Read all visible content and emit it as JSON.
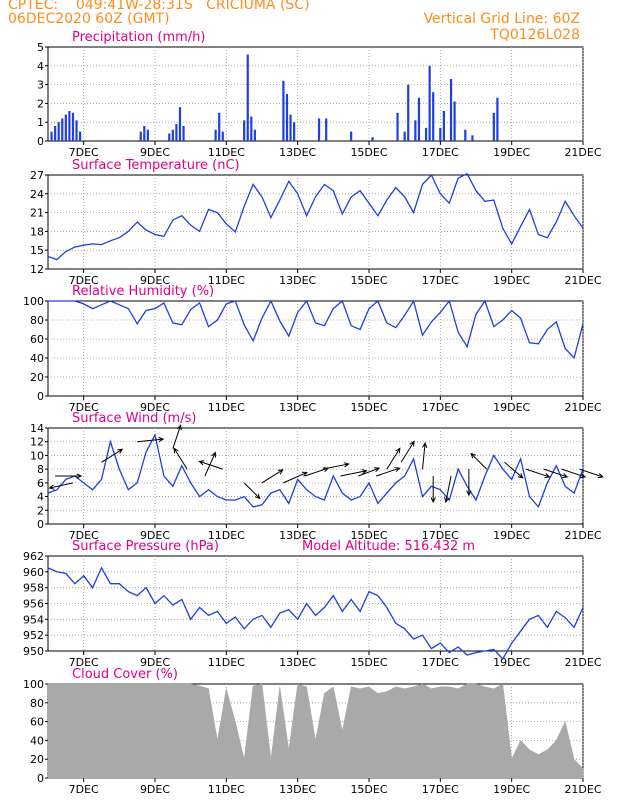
{
  "header": {
    "left_line1": "CPTEC:    049:41W-28:31S   CRICIUMA (SC)",
    "left_line2": "06DEC2020 60Z (GMT)",
    "right_line1": "Vertical Grid Line: 60Z",
    "right_line2": "TQ0126L028"
  },
  "colors": {
    "header": "#ff8c1a",
    "panel_title": "#e0008a",
    "line": "#1f3fe0",
    "precip_bar": "#1f3fe0",
    "cloud_fill": "#a9a9a9",
    "grid": "#9a9a9a"
  },
  "chart_data": [
    {
      "id": "precip",
      "type": "bar",
      "title": "Precipitation (mm/h)",
      "ylim": [
        0,
        5
      ],
      "yticks": [
        0,
        1,
        2,
        3,
        4,
        5
      ],
      "xticks": [
        "7DEC",
        "9DEC",
        "11DEC",
        "13DEC",
        "15DEC",
        "17DEC",
        "19DEC",
        "21DEC"
      ],
      "xlim": [
        6,
        21
      ],
      "grid": true,
      "x": [
        6.1,
        6.2,
        6.3,
        6.4,
        6.5,
        6.6,
        6.7,
        6.8,
        6.9,
        8.6,
        8.7,
        8.8,
        9.4,
        9.5,
        9.6,
        9.7,
        9.8,
        10.7,
        10.8,
        10.9,
        11.5,
        11.6,
        11.7,
        11.8,
        12.6,
        12.7,
        12.8,
        12.9,
        13.6,
        13.8,
        14.5,
        15.1,
        15.8,
        16.0,
        16.1,
        16.3,
        16.4,
        16.6,
        16.7,
        16.8,
        17.0,
        17.1,
        17.3,
        17.4,
        17.7,
        17.9,
        18.5,
        18.6
      ],
      "values": [
        0.5,
        0.8,
        1.0,
        1.2,
        1.4,
        1.6,
        1.5,
        1.1,
        0.5,
        0.5,
        0.8,
        0.6,
        0.4,
        0.6,
        0.9,
        1.8,
        0.8,
        0.6,
        1.5,
        0.5,
        1.1,
        4.6,
        1.3,
        0.6,
        3.2,
        2.5,
        1.4,
        1.0,
        1.2,
        1.2,
        0.5,
        0.2,
        1.5,
        0.5,
        3.0,
        1.1,
        2.3,
        0.7,
        4.0,
        2.6,
        0.7,
        1.6,
        3.3,
        2.1,
        0.6,
        0.3,
        1.5,
        2.3
      ]
    },
    {
      "id": "temp",
      "type": "line",
      "title": "Surface Temperature (nC)",
      "ylim": [
        12,
        27
      ],
      "yticks": [
        12,
        15,
        18,
        21,
        24,
        27
      ],
      "xticks": [
        "7DEC",
        "9DEC",
        "11DEC",
        "13DEC",
        "15DEC",
        "17DEC",
        "19DEC",
        "21DEC"
      ],
      "xlim": [
        6,
        21
      ],
      "grid": true,
      "x": [
        6.0,
        6.25,
        6.5,
        6.75,
        7.0,
        7.25,
        7.5,
        7.75,
        8.0,
        8.25,
        8.5,
        8.75,
        9.0,
        9.25,
        9.5,
        9.75,
        10.0,
        10.25,
        10.5,
        10.75,
        11.0,
        11.25,
        11.5,
        11.75,
        12.0,
        12.25,
        12.5,
        12.75,
        13.0,
        13.25,
        13.5,
        13.75,
        14.0,
        14.25,
        14.5,
        14.75,
        15.0,
        15.25,
        15.5,
        15.75,
        16.0,
        16.25,
        16.5,
        16.75,
        17.0,
        17.25,
        17.5,
        17.75,
        18.0,
        18.25,
        18.5,
        18.75,
        19.0,
        19.25,
        19.5,
        19.75,
        20.0,
        20.25,
        20.5,
        20.75,
        21.0
      ],
      "values": [
        14.0,
        13.5,
        14.8,
        15.5,
        15.8,
        16.0,
        15.9,
        16.5,
        17.0,
        18.0,
        19.5,
        18.2,
        17.5,
        17.2,
        19.8,
        20.5,
        19.0,
        18.0,
        21.5,
        21.0,
        19.2,
        17.9,
        22.0,
        25.5,
        23.5,
        20.2,
        23.0,
        26.0,
        24.0,
        20.5,
        23.5,
        25.5,
        24.5,
        20.8,
        23.5,
        24.5,
        22.5,
        20.5,
        23.0,
        25.0,
        23.5,
        21.0,
        25.5,
        27.0,
        24.0,
        22.5,
        26.5,
        27.2,
        24.5,
        22.8,
        23.0,
        18.5,
        16.0,
        18.8,
        21.5,
        17.5,
        17.0,
        19.5,
        22.8,
        20.5,
        18.5
      ]
    },
    {
      "id": "rh",
      "type": "line",
      "title": "Relative Humidity (%)",
      "ylim": [
        0,
        100
      ],
      "yticks": [
        0,
        20,
        40,
        60,
        80,
        100
      ],
      "xticks": [
        "7DEC",
        "9DEC",
        "11DEC",
        "13DEC",
        "15DEC",
        "17DEC",
        "19DEC",
        "21DEC"
      ],
      "xlim": [
        6,
        21
      ],
      "grid": true,
      "x": [
        6.0,
        6.25,
        6.5,
        6.75,
        7.0,
        7.25,
        7.5,
        7.75,
        8.0,
        8.25,
        8.5,
        8.75,
        9.0,
        9.25,
        9.5,
        9.75,
        10.0,
        10.25,
        10.5,
        10.75,
        11.0,
        11.25,
        11.5,
        11.75,
        12.0,
        12.25,
        12.5,
        12.75,
        13.0,
        13.25,
        13.5,
        13.75,
        14.0,
        14.25,
        14.5,
        14.75,
        15.0,
        15.25,
        15.5,
        15.75,
        16.0,
        16.25,
        16.5,
        16.75,
        17.0,
        17.25,
        17.5,
        17.75,
        18.0,
        18.25,
        18.5,
        18.75,
        19.0,
        19.25,
        19.5,
        19.75,
        20.0,
        20.25,
        20.5,
        20.75,
        21.0
      ],
      "values": [
        100,
        100,
        100,
        100,
        97,
        92,
        96,
        100,
        96,
        92,
        76,
        90,
        92,
        98,
        77,
        75,
        91,
        98,
        73,
        80,
        97,
        100,
        75,
        58,
        82,
        100,
        79,
        63,
        88,
        100,
        77,
        74,
        92,
        100,
        74,
        70,
        92,
        100,
        77,
        72,
        85,
        100,
        64,
        78,
        88,
        100,
        67,
        52,
        86,
        100,
        73,
        80,
        90,
        82,
        56,
        55,
        70,
        78,
        50,
        40,
        76
      ]
    },
    {
      "id": "wind",
      "type": "line",
      "title": "Surface Wind (m/s)",
      "ylim": [
        0,
        14
      ],
      "yticks": [
        0,
        2,
        4,
        6,
        8,
        10,
        12,
        14
      ],
      "xticks": [
        "7DEC",
        "9DEC",
        "11DEC",
        "13DEC",
        "15DEC",
        "17DEC",
        "19DEC",
        "21DEC"
      ],
      "xlim": [
        6,
        21
      ],
      "grid": true,
      "x": [
        6.0,
        6.25,
        6.5,
        6.75,
        7.0,
        7.25,
        7.5,
        7.75,
        8.0,
        8.25,
        8.5,
        8.75,
        9.0,
        9.25,
        9.5,
        9.75,
        10.0,
        10.25,
        10.5,
        10.75,
        11.0,
        11.25,
        11.5,
        11.75,
        12.0,
        12.25,
        12.5,
        12.75,
        13.0,
        13.25,
        13.5,
        13.75,
        14.0,
        14.25,
        14.5,
        14.75,
        15.0,
        15.25,
        15.5,
        15.75,
        16.0,
        16.25,
        16.5,
        16.75,
        17.0,
        17.25,
        17.5,
        17.75,
        18.0,
        18.25,
        18.5,
        18.75,
        19.0,
        19.25,
        19.5,
        19.75,
        20.0,
        20.25,
        20.5,
        20.75,
        21.0
      ],
      "values": [
        4.5,
        5.0,
        6.5,
        7.0,
        6.0,
        5.0,
        6.5,
        12.0,
        8.0,
        5.0,
        6.0,
        10.5,
        13.0,
        7.0,
        5.5,
        8.5,
        6.0,
        4.0,
        5.0,
        4.0,
        3.5,
        3.5,
        4.0,
        2.5,
        2.8,
        4.5,
        5.0,
        3.0,
        6.5,
        5.0,
        4.0,
        3.5,
        7.0,
        4.5,
        3.5,
        4.0,
        6.0,
        3.0,
        4.5,
        6.0,
        7.0,
        9.5,
        4.0,
        5.5,
        5.0,
        3.5,
        8.0,
        5.5,
        3.5,
        7.0,
        10.0,
        8.0,
        6.5,
        9.5,
        4.0,
        2.5,
        6.0,
        8.5,
        5.5,
        4.5,
        8.0
      ],
      "vectors": {
        "t": [
          6.2,
          6.7,
          7.5,
          8.5,
          9.5,
          9.9,
          10.4,
          10.9,
          11.5,
          12.0,
          12.6,
          13.2,
          13.7,
          14.2,
          14.7,
          15.2,
          15.5,
          15.9,
          16.5,
          16.8,
          17.3,
          17.8,
          18.3,
          18.8,
          19.4,
          19.9,
          20.4,
          20.9
        ],
        "u": [
          1.0,
          -0.9,
          0.8,
          1.0,
          0.3,
          -0.5,
          0.4,
          -0.9,
          0.6,
          0.8,
          0.9,
          0.9,
          1.0,
          1.0,
          0.8,
          0.9,
          0.5,
          0.5,
          0.1,
          0.0,
          -0.2,
          0.0,
          -0.6,
          0.7,
          0.9,
          0.9,
          0.9,
          0.9
        ],
        "v": [
          0.0,
          -0.2,
          0.5,
          0.1,
          0.9,
          0.8,
          0.9,
          0.3,
          -0.6,
          0.5,
          0.4,
          0.3,
          0.2,
          0.2,
          0.3,
          0.3,
          0.8,
          0.8,
          1.0,
          -1.0,
          -1.0,
          -1.0,
          0.6,
          -0.6,
          -0.3,
          -0.3,
          -0.3,
          -0.3
        ],
        "speed": [
          7,
          6,
          9,
          12,
          11,
          8,
          7,
          8,
          6,
          6,
          6,
          7,
          8,
          7,
          7,
          7,
          8,
          9,
          8,
          7,
          7,
          8,
          8,
          9,
          8,
          8,
          8,
          8
        ]
      }
    },
    {
      "id": "pres",
      "type": "line",
      "title": "Surface Pressure (hPa)",
      "annotation": "Model Altitude: 516.432 m",
      "ylim": [
        950,
        962
      ],
      "yticks": [
        950,
        952,
        954,
        956,
        958,
        960,
        962
      ],
      "xticks": [
        "7DEC",
        "9DEC",
        "11DEC",
        "13DEC",
        "15DEC",
        "17DEC",
        "19DEC",
        "21DEC"
      ],
      "xlim": [
        6,
        21
      ],
      "grid": true,
      "x": [
        6.0,
        6.25,
        6.5,
        6.75,
        7.0,
        7.25,
        7.5,
        7.75,
        8.0,
        8.25,
        8.5,
        8.75,
        9.0,
        9.25,
        9.5,
        9.75,
        10.0,
        10.25,
        10.5,
        10.75,
        11.0,
        11.25,
        11.5,
        11.75,
        12.0,
        12.25,
        12.5,
        12.75,
        13.0,
        13.25,
        13.5,
        13.75,
        14.0,
        14.25,
        14.5,
        14.75,
        15.0,
        15.25,
        15.5,
        15.75,
        16.0,
        16.25,
        16.5,
        16.75,
        17.0,
        17.25,
        17.5,
        17.75,
        18.0,
        18.25,
        18.5,
        18.75,
        19.0,
        19.25,
        19.5,
        19.75,
        20.0,
        20.25,
        20.5,
        20.75,
        21.0
      ],
      "values": [
        960.5,
        960.0,
        959.8,
        958.5,
        959.5,
        958.0,
        960.5,
        958.5,
        958.5,
        957.5,
        957.0,
        958.0,
        956.0,
        957.0,
        955.8,
        956.5,
        954.0,
        955.5,
        954.5,
        955.0,
        953.5,
        954.3,
        952.8,
        954.0,
        954.5,
        953.0,
        954.8,
        955.2,
        954.0,
        956.0,
        954.5,
        955.5,
        957.0,
        955.0,
        956.5,
        955.0,
        957.5,
        957.0,
        955.5,
        953.5,
        952.8,
        951.5,
        952.0,
        950.3,
        951.0,
        949.8,
        950.5,
        949.5,
        949.8,
        950.0,
        950.2,
        949.0,
        951.0,
        952.5,
        954.0,
        954.5,
        953.0,
        955.0,
        954.2,
        953.0,
        955.5
      ]
    },
    {
      "id": "cloud",
      "type": "area",
      "title": "Cloud Cover (%)",
      "ylim": [
        0,
        100
      ],
      "yticks": [
        0,
        20,
        40,
        60,
        80,
        100
      ],
      "xticks": [
        "7DEC",
        "9DEC",
        "11DEC",
        "13DEC",
        "15DEC",
        "17DEC",
        "19DEC",
        "21DEC"
      ],
      "xlim": [
        6,
        21
      ],
      "grid": true,
      "x": [
        6.0,
        6.25,
        6.5,
        6.75,
        7.0,
        7.25,
        7.5,
        7.75,
        8.0,
        8.25,
        8.5,
        8.75,
        9.0,
        9.25,
        9.5,
        9.75,
        10.0,
        10.25,
        10.5,
        10.75,
        11.0,
        11.25,
        11.5,
        11.75,
        12.0,
        12.25,
        12.5,
        12.75,
        13.0,
        13.25,
        13.5,
        13.75,
        14.0,
        14.25,
        14.5,
        14.75,
        15.0,
        15.25,
        15.5,
        15.75,
        16.0,
        16.25,
        16.5,
        16.75,
        17.0,
        17.25,
        17.5,
        17.75,
        18.0,
        18.25,
        18.5,
        18.75,
        19.0,
        19.25,
        19.5,
        19.75,
        20.0,
        20.25,
        20.5,
        20.75,
        21.0
      ],
      "values": [
        100,
        100,
        100,
        100,
        100,
        100,
        100,
        100,
        100,
        100,
        100,
        100,
        100,
        100,
        100,
        100,
        100,
        98,
        95,
        40,
        95,
        60,
        20,
        98,
        100,
        20,
        97,
        30,
        100,
        97,
        40,
        90,
        97,
        50,
        97,
        95,
        97,
        90,
        92,
        97,
        95,
        97,
        100,
        95,
        97,
        97,
        95,
        100,
        100,
        97,
        95,
        100,
        20,
        40,
        30,
        25,
        30,
        40,
        60,
        20,
        10
      ]
    }
  ]
}
